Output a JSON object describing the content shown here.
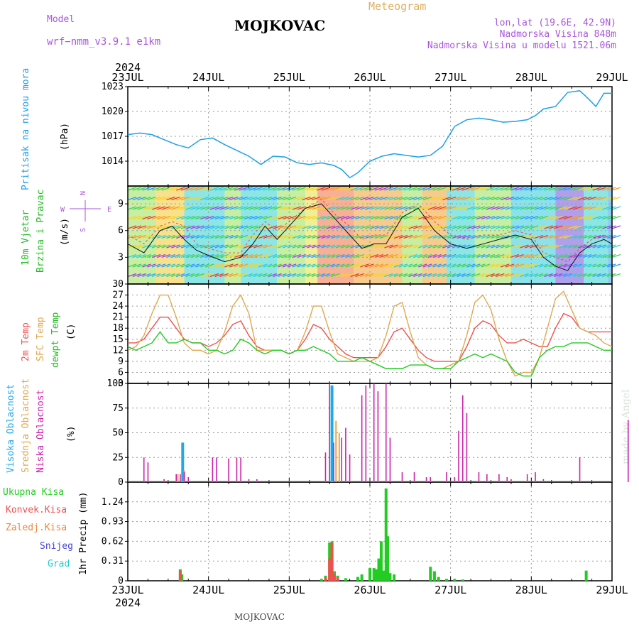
{
  "header": {
    "model_label": "Model",
    "model_name": "wrf−nmm_v3.9.1  e1km",
    "title": "MOJKOVAC",
    "product": "Meteogram",
    "lonlat": "lon,lat (19.6E, 42.9N)",
    "altitude": "Nadmorska Visina 848m",
    "model_altitude": "Nadmorska Visina u modelu 1521.06m"
  },
  "footer": {
    "station": "MOJKOVAC",
    "watermark": "made by Angel"
  },
  "colors": {
    "pressure": "#1ea0e8",
    "t2m": "#f05050",
    "tsfc": "#e0a850",
    "dewpoint": "#22cc22",
    "cloud_high": "#22a8e8",
    "cloud_mid": "#e0a850",
    "cloud_low": "#cc22aa",
    "precip_total": "#22cc22",
    "precip_conv": "#f05050",
    "precip_frozen": "#f0843a",
    "snow": "#4444dd",
    "hail": "#22cccc",
    "wind_label": "#22bb22",
    "compass": "#aa55dd"
  },
  "chart_data": [
    {
      "type": "line",
      "panel": "pressure",
      "year": "2024",
      "x_ticks": [
        "23JUL",
        "24JUL",
        "25JUL",
        "26JUL",
        "27JUL",
        "28JUL",
        "29JUL"
      ],
      "ylabel_name": "Pritisak na nivou mora",
      "ylabel_unit": "(hPa)",
      "ylim": [
        1011,
        1023
      ],
      "yticks": [
        "1014",
        "1017",
        "1020",
        "1023"
      ],
      "x_days": [
        0,
        0.15,
        0.3,
        0.45,
        0.6,
        0.75,
        0.9,
        1.05,
        1.2,
        1.35,
        1.5,
        1.65,
        1.8,
        1.95,
        2.1,
        2.25,
        2.4,
        2.55,
        2.65,
        2.75,
        2.85,
        3.0,
        3.15,
        3.3,
        3.45,
        3.6,
        3.75,
        3.9,
        4.05,
        4.2,
        4.35,
        4.5,
        4.65,
        4.8,
        4.95,
        5.05,
        5.15,
        5.3,
        5.45,
        5.6,
        5.7,
        5.8,
        5.9,
        6.0
      ],
      "values": [
        1017.2,
        1017.4,
        1017.2,
        1016.6,
        1016.0,
        1015.6,
        1016.6,
        1016.8,
        1016.0,
        1015.3,
        1014.6,
        1013.6,
        1014.6,
        1014.5,
        1013.8,
        1013.6,
        1013.8,
        1013.5,
        1013.0,
        1012.0,
        1012.6,
        1014.0,
        1014.6,
        1014.9,
        1014.7,
        1014.5,
        1014.7,
        1015.8,
        1018.2,
        1019.0,
        1019.2,
        1019.0,
        1018.7,
        1018.8,
        1019.0,
        1019.5,
        1020.3,
        1020.6,
        1022.3,
        1022.5,
        1021.6,
        1020.6,
        1022.2,
        1022.2
      ],
      "series": [
        {
          "name": "Pritisak na nivou mora"
        }
      ]
    },
    {
      "type": "line",
      "panel": "wind",
      "ylabel_name": "10m Vjetar",
      "ylabel_name2": "Brzina i Pravac",
      "ylabel_unit": "(m/s)",
      "ylim": [
        0,
        11
      ],
      "yticks": [
        "3",
        "6",
        "9"
      ],
      "compass": {
        "n": "N",
        "s": "S",
        "w": "W",
        "e": "E"
      },
      "x_days": [
        0,
        0.2,
        0.4,
        0.55,
        0.7,
        0.85,
        1.0,
        1.2,
        1.4,
        1.55,
        1.7,
        1.85,
        2.0,
        2.2,
        2.4,
        2.6,
        2.75,
        2.9,
        3.05,
        3.2,
        3.4,
        3.6,
        3.8,
        4.0,
        4.2,
        4.4,
        4.6,
        4.8,
        5.0,
        5.15,
        5.3,
        5.45,
        5.6,
        5.75,
        5.9,
        6.0
      ],
      "speed": [
        4.5,
        3.5,
        6.0,
        6.5,
        5.0,
        3.8,
        3.2,
        2.5,
        3.0,
        4.5,
        6.5,
        5.0,
        6.5,
        8.5,
        9.0,
        7.0,
        5.5,
        4.0,
        4.5,
        4.5,
        7.5,
        8.5,
        6.0,
        4.5,
        4.0,
        4.5,
        5.0,
        5.5,
        5.0,
        3.0,
        2.0,
        1.5,
        3.5,
        4.5,
        5.0,
        4.5
      ],
      "gust": [
        5.5,
        4.5,
        6.5,
        7.0,
        6.5,
        4.5,
        4.0,
        3.5,
        3.5,
        5.5,
        7.0,
        6.0,
        7.0,
        8.5,
        9.5,
        7.5,
        6.5,
        5.0,
        5.5,
        5.5,
        8.0,
        9.0,
        7.0,
        5.5,
        5.0,
        5.5,
        5.5,
        6.0,
        5.5,
        3.5,
        3.0,
        2.5,
        4.0,
        5.0,
        5.5,
        5.0
      ],
      "series": [
        {
          "name": "10m Vjetar"
        }
      ]
    },
    {
      "type": "line",
      "panel": "temperature",
      "ylabel_names": [
        "2m Temp",
        "SFC Temp",
        "dewpt Temp"
      ],
      "ylabel_unit": "(C)",
      "ylim": [
        3,
        30
      ],
      "yticks": [
        "3",
        "6",
        "9",
        "12",
        "15",
        "18",
        "21",
        "24",
        "27",
        "30"
      ],
      "x_days": [
        0,
        0.1,
        0.2,
        0.3,
        0.4,
        0.5,
        0.6,
        0.7,
        0.8,
        0.9,
        1.0,
        1.1,
        1.2,
        1.3,
        1.4,
        1.5,
        1.6,
        1.7,
        1.8,
        1.9,
        2.0,
        2.1,
        2.2,
        2.3,
        2.4,
        2.5,
        2.6,
        2.7,
        2.8,
        2.9,
        3.0,
        3.1,
        3.2,
        3.3,
        3.4,
        3.5,
        3.6,
        3.7,
        3.8,
        3.9,
        4.0,
        4.1,
        4.2,
        4.3,
        4.4,
        4.5,
        4.6,
        4.7,
        4.8,
        4.9,
        5.0,
        5.1,
        5.2,
        5.3,
        5.4,
        5.5,
        5.6,
        5.7,
        5.8,
        5.9,
        6.0
      ],
      "series": [
        {
          "name": "2m Temp",
          "values": [
            14,
            14,
            15,
            18,
            21,
            21,
            18,
            15,
            14,
            14,
            13,
            14,
            16,
            19,
            20,
            16,
            13,
            12,
            12,
            12,
            11,
            12,
            15,
            19,
            18,
            15,
            13,
            11,
            10,
            10,
            10,
            10,
            13,
            17,
            18,
            15,
            12,
            10,
            9,
            9,
            9,
            9,
            13,
            18,
            20,
            19,
            16,
            14,
            14,
            15,
            14,
            13,
            13,
            18,
            22,
            21,
            18,
            17,
            17,
            17,
            17
          ]
        },
        {
          "name": "SFC Temp",
          "values": [
            12,
            13,
            16,
            22,
            27,
            27,
            21,
            14,
            12,
            12,
            11,
            12,
            17,
            24,
            27,
            22,
            12,
            12,
            12,
            12,
            11,
            12,
            17,
            24,
            24,
            17,
            11,
            10,
            9,
            9,
            9,
            10,
            16,
            24,
            25,
            17,
            10,
            8,
            7,
            7,
            8,
            9,
            16,
            25,
            27,
            23,
            15,
            9,
            5,
            6,
            6,
            10,
            18,
            26,
            28,
            23,
            18,
            17,
            16,
            14,
            13
          ]
        },
        {
          "name": "dewpt Temp",
          "values": [
            13,
            12,
            13,
            14,
            17,
            14,
            14,
            15,
            14,
            14,
            12,
            12,
            11,
            12,
            15,
            14,
            12,
            11,
            12,
            12,
            11,
            12,
            12,
            13,
            12,
            11,
            9,
            9,
            9,
            10,
            9,
            8,
            7,
            7,
            7,
            8,
            8,
            8,
            7,
            7,
            7,
            9,
            10,
            11,
            10,
            11,
            10,
            9,
            6,
            5,
            5,
            10,
            12,
            13,
            13,
            14,
            14,
            14,
            13,
            12,
            12
          ]
        }
      ]
    },
    {
      "type": "bar",
      "panel": "cloud",
      "ylabel_names": [
        "Visoka Oblacnost",
        "Srednja Oblacnost",
        "Niska Oblacnost"
      ],
      "ylabel_unit": "(%)",
      "ylim": [
        0,
        100
      ],
      "yticks": [
        "0",
        "25",
        "50",
        "75",
        "100"
      ],
      "series": [
        {
          "name": "Visoka Oblacnost",
          "x_days": [
            0.68,
            2.53
          ],
          "values": [
            40,
            98
          ]
        },
        {
          "name": "Srednja Oblacnost",
          "x_days": [
            0.62,
            0.7,
            2.58,
            2.62
          ],
          "values": [
            8,
            12,
            62,
            50
          ]
        },
        {
          "name": "Niska Oblacnost",
          "x_days": [
            0.2,
            0.25,
            0.45,
            0.6,
            0.65,
            0.7,
            0.75,
            1.05,
            1.1,
            1.25,
            1.35,
            1.4,
            1.5,
            1.6,
            2.45,
            2.5,
            2.55,
            2.65,
            2.7,
            2.75,
            2.9,
            2.95,
            3.05,
            3.1,
            3.2,
            3.25,
            3.4,
            3.55,
            3.7,
            3.75,
            3.95,
            4.05,
            4.1,
            4.15,
            4.2,
            4.35,
            4.45,
            4.6,
            4.7,
            4.75,
            4.95,
            5.05,
            5.15,
            5.6,
            6.2
          ],
          "values": [
            25,
            20,
            3,
            8,
            8,
            10,
            5,
            25,
            25,
            24,
            25,
            25,
            3,
            3,
            30,
            100,
            40,
            45,
            55,
            28,
            88,
            98,
            100,
            92,
            100,
            45,
            10,
            10,
            5,
            5,
            10,
            5,
            52,
            88,
            70,
            10,
            8,
            8,
            5,
            3,
            8,
            10,
            3,
            25,
            63
          ]
        }
      ]
    },
    {
      "type": "bar",
      "panel": "precip",
      "ylabel_name": "1hr Precip (mm)",
      "legend": [
        "Ukupna Kisa",
        "Konvek.Kisa",
        "Zaledj.Kisa",
        "Snijeg",
        "Grad"
      ],
      "ylim": [
        0,
        1.55
      ],
      "yticks": [
        "0",
        "0.31",
        "0.62",
        "0.93",
        "1.24"
      ],
      "series": [
        {
          "name": "Ukupna Kisa",
          "x_days": [
            0.65,
            0.67,
            2.4,
            2.45,
            2.5,
            2.53,
            2.56,
            2.6,
            2.7,
            2.85,
            2.9,
            3.0,
            3.05,
            3.08,
            3.11,
            3.14,
            3.17,
            3.2,
            3.22,
            3.25,
            3.3,
            3.75,
            3.8,
            3.85,
            3.95,
            4.05,
            4.15,
            5.68
          ],
          "values": [
            0.18,
            0.1,
            0.03,
            0.08,
            0.6,
            0.62,
            0.15,
            0.08,
            0.04,
            0.06,
            0.1,
            0.2,
            0.2,
            0.18,
            0.35,
            0.62,
            0.16,
            1.45,
            0.7,
            0.12,
            0.1,
            0.22,
            0.15,
            0.06,
            0.03,
            0.03,
            0.02,
            0.16
          ]
        },
        {
          "name": "Konvek.Kisa",
          "x_days": [
            0.65,
            2.45,
            2.5,
            2.53,
            2.56,
            2.6
          ],
          "values": [
            0.16,
            0.05,
            0.35,
            0.6,
            0.1,
            0.05
          ]
        },
        {
          "name": "Zaledj.Kisa",
          "x_days": [],
          "values": []
        },
        {
          "name": "Snijeg",
          "x_days": [],
          "values": []
        },
        {
          "name": "Grad",
          "x_days": [],
          "values": []
        }
      ]
    }
  ]
}
